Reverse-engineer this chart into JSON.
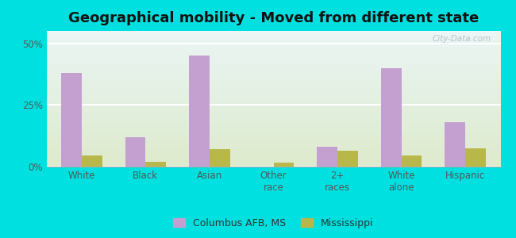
{
  "title": "Geographical mobility · Moved from different state",
  "title_text": "Geographical mobility - Moved from different state",
  "categories": [
    "White",
    "Black",
    "Asian",
    "Other\nrace",
    "2+\nraces",
    "White\nalone",
    "Hispanic"
  ],
  "columbus_values": [
    38,
    12,
    45,
    0,
    8,
    40,
    18
  ],
  "mississippi_values": [
    4.5,
    2,
    7,
    1.5,
    6.5,
    4.5,
    7.5
  ],
  "bar_color_columbus": "#c4a0d0",
  "bar_color_mississippi": "#b8b84a",
  "background_outer": "#00e0e0",
  "gradient_top": "#eaf5f5",
  "gradient_bottom": "#ddeacc",
  "yticks": [
    0,
    25,
    50
  ],
  "ylim": [
    0,
    55
  ],
  "legend_label_1": "Columbus AFB, MS",
  "legend_label_2": "Mississippi",
  "title_fontsize": 13,
  "tick_fontsize": 8.5,
  "legend_fontsize": 9,
  "bar_width": 0.32
}
